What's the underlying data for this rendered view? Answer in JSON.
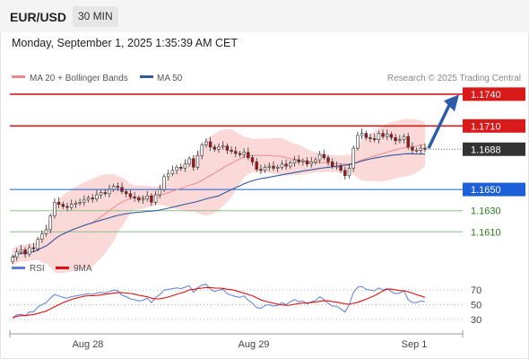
{
  "header": {
    "symbol": "EUR/USD",
    "timeframe": "30 MIN",
    "datetime": "Monday, September 1, 2025 1:35:39 AM CET"
  },
  "colors": {
    "ma20": "#f08a8a",
    "band_fill": "#fbd9d9",
    "ma50": "#2f5a9e",
    "resistance": "#d91a1a",
    "pivot": "#1d5fd6",
    "support": "#2a7a1c",
    "last_price": "#333333",
    "arrow": "#2c5ca8",
    "rsi": "#5a7fd6",
    "rsi_ma": "#e01010",
    "candle_up": "#ffffff",
    "candle_down": "#b01212"
  },
  "chart_data": [
    {
      "type": "candlestick",
      "title": "EUR/USD",
      "legend": [
        {
          "label": "MA 20 + Bollinger Bands",
          "color": "#f08a8a"
        },
        {
          "label": "MA 50",
          "color": "#2f5a9e"
        }
      ],
      "credit": "Research © 2025 Trading Central",
      "x_ticks": [
        "Aug 28",
        "Aug 29",
        "Sep 1"
      ],
      "ylim": [
        1.1595,
        1.1745
      ],
      "levels": [
        {
          "value": 1.174,
          "label": "1.1740",
          "kind": "resistance"
        },
        {
          "value": 1.171,
          "label": "1.1710",
          "kind": "resistance"
        },
        {
          "value": 1.1688,
          "label": "1.1688",
          "kind": "last"
        },
        {
          "value": 1.165,
          "label": "1.1650",
          "kind": "pivot"
        },
        {
          "value": 1.163,
          "label": "1.1630",
          "kind": "support"
        },
        {
          "value": 1.161,
          "label": "1.1610",
          "kind": "support"
        }
      ],
      "close_path": [
        1.1586,
        1.1591,
        1.1593,
        1.1589,
        1.1595,
        1.1594,
        1.1603,
        1.1608,
        1.1612,
        1.1625,
        1.1638,
        1.1636,
        1.1634,
        1.1633,
        1.1636,
        1.1637,
        1.1638,
        1.164,
        1.1642,
        1.1641,
        1.1645,
        1.1647,
        1.1646,
        1.165,
        1.1653,
        1.1652,
        1.1648,
        1.1646,
        1.1643,
        1.1642,
        1.164,
        1.1641,
        1.1644,
        1.1638,
        1.1645,
        1.165,
        1.1662,
        1.1665,
        1.1668,
        1.1671,
        1.167,
        1.1674,
        1.1679,
        1.1671,
        1.1682,
        1.1692,
        1.1695,
        1.169,
        1.1688,
        1.169,
        1.1691,
        1.1687,
        1.1686,
        1.1684,
        1.1683,
        1.1685,
        1.168,
        1.1676,
        1.1669,
        1.1668,
        1.1671,
        1.1672,
        1.167,
        1.1671,
        1.1674,
        1.1672,
        1.1675,
        1.1678,
        1.1676,
        1.1677,
        1.1674,
        1.1676,
        1.1678,
        1.1683,
        1.168,
        1.1676,
        1.1672,
        1.1672,
        1.1668,
        1.1663,
        1.167,
        1.1689,
        1.1701,
        1.1703,
        1.1699,
        1.1698,
        1.1697,
        1.1703,
        1.17,
        1.1702,
        1.1699,
        1.1696,
        1.1697,
        1.17,
        1.169,
        1.1687,
        1.1687,
        1.1689,
        1.1688
      ],
      "arrow": {
        "from": 1.1689,
        "to": 1.1738
      }
    },
    {
      "type": "line",
      "title": "",
      "legend": [
        {
          "label": "RSI",
          "color": "#5a7fd6"
        },
        {
          "label": "9MA",
          "color": "#e01010"
        }
      ],
      "y_ticks": [
        "70",
        "50",
        "30"
      ],
      "ylim": [
        15,
        85
      ],
      "reference_lines": [
        70,
        50,
        30
      ],
      "rsi": [
        32,
        36,
        37,
        35,
        40,
        40,
        47,
        50,
        53,
        59,
        64,
        62,
        60,
        59,
        61,
        62,
        63,
        64,
        65,
        64,
        66,
        67,
        66,
        68,
        70,
        69,
        63,
        61,
        58,
        57,
        55,
        56,
        59,
        53,
        60,
        64,
        70,
        71,
        72,
        73,
        72,
        74,
        76,
        67,
        73,
        77,
        78,
        71,
        68,
        70,
        71,
        65,
        63,
        61,
        60,
        62,
        56,
        52,
        46,
        45,
        49,
        50,
        48,
        49,
        53,
        50,
        54,
        57,
        54,
        55,
        51,
        54,
        56,
        61,
        57,
        52,
        48,
        48,
        44,
        40,
        50,
        67,
        74,
        75,
        71,
        70,
        69,
        73,
        70,
        72,
        68,
        65,
        66,
        69,
        57,
        53,
        53,
        55,
        54
      ]
    }
  ]
}
